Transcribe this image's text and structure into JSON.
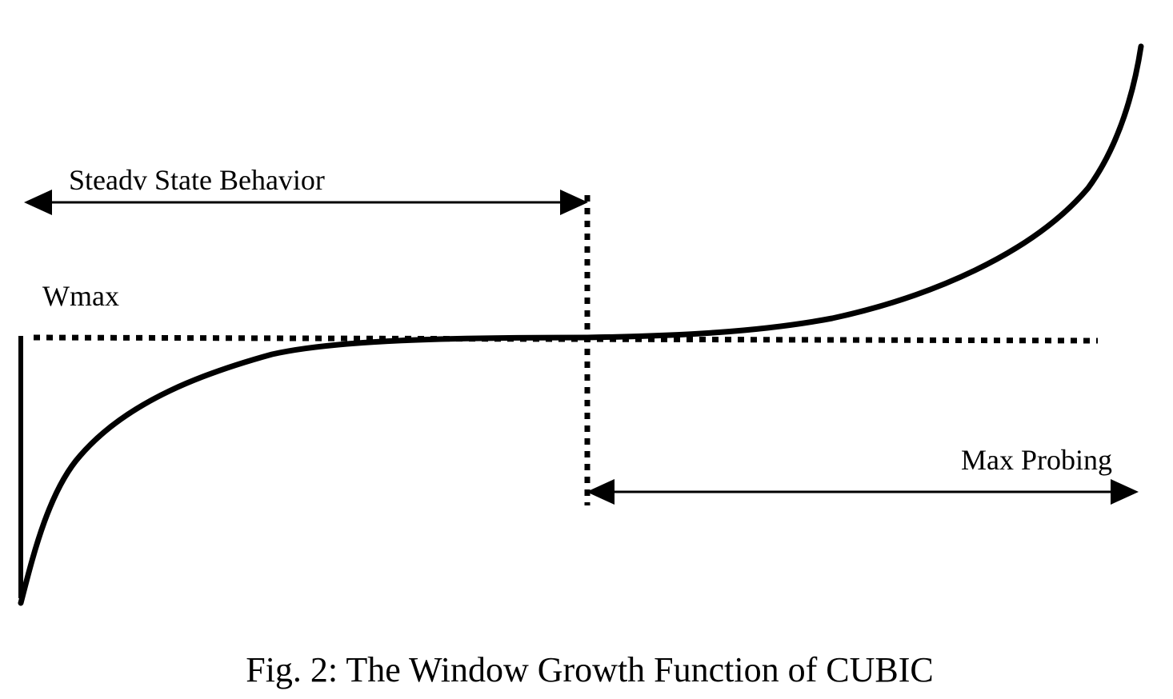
{
  "figure": {
    "caption": "Fig. 2: The Window Growth Function of CUBIC",
    "labels": {
      "steady_state": "Steadv State Behavior",
      "wmax": "Wmax",
      "max_probing": "Max Probing"
    },
    "colors": {
      "ink": "#000000",
      "background": "#ffffff"
    }
  }
}
